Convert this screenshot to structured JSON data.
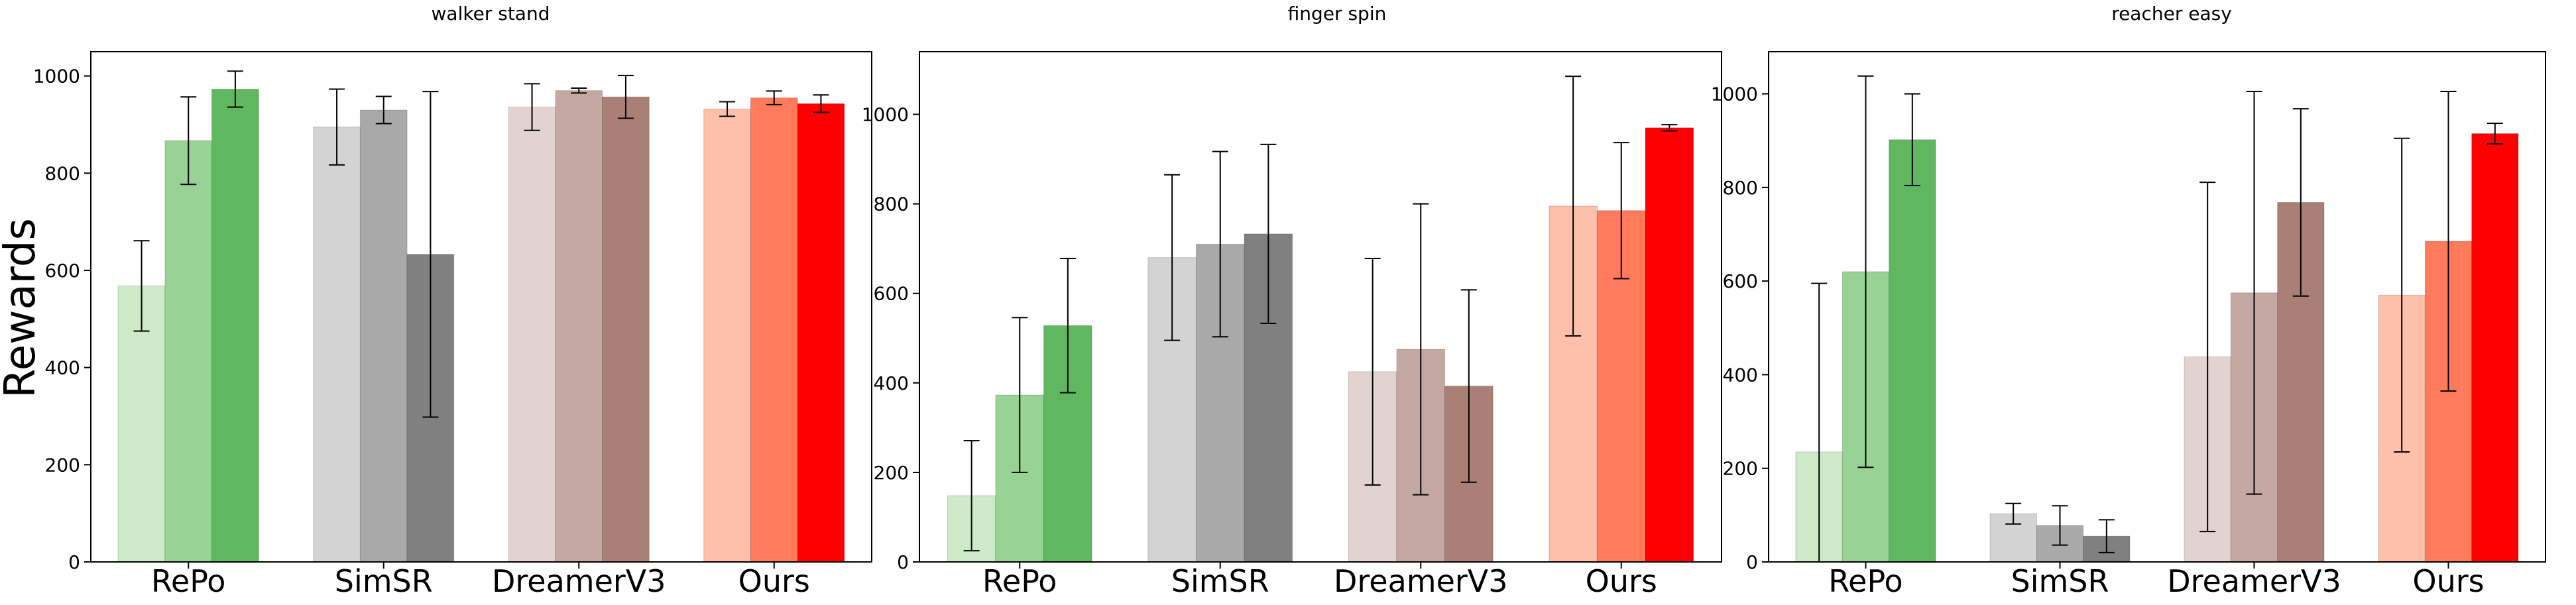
{
  "ylabel": "Rewards",
  "chart_data": [
    {
      "type": "bar",
      "title": "walker stand",
      "categories": [
        "RePo",
        "SimSR",
        "DreamerV3",
        "Ours"
      ],
      "ylim": [
        0,
        1050
      ],
      "yticks": [
        0,
        200,
        400,
        600,
        800,
        1000
      ],
      "groups": [
        {
          "values": [
            568,
            867,
            973
          ],
          "errors": [
            93,
            90,
            37
          ],
          "colors": [
            "#cde9c8",
            "#98d294",
            "#5fb85f"
          ]
        },
        {
          "values": [
            895,
            930,
            633
          ],
          "errors": [
            78,
            28,
            335
          ],
          "colors": [
            "#d3d3d3",
            "#a9a9a9",
            "#808080"
          ]
        },
        {
          "values": [
            936,
            970,
            957
          ],
          "errors": [
            48,
            5,
            44
          ],
          "colors": [
            "#e3d3d0",
            "#c5a8a2",
            "#a97f76"
          ]
        },
        {
          "values": [
            932,
            955,
            943
          ],
          "errors": [
            15,
            14,
            18
          ],
          "colors": [
            "#febfab",
            "#ff7b5c",
            "#ff0000"
          ]
        }
      ]
    },
    {
      "type": "bar",
      "title": "finger spin",
      "categories": [
        "RePo",
        "SimSR",
        "DreamerV3",
        "Ours"
      ],
      "ylim": [
        0,
        1140
      ],
      "yticks": [
        0,
        200,
        400,
        600,
        800,
        1000
      ],
      "groups": [
        {
          "values": [
            148,
            373,
            528
          ],
          "errors": [
            123,
            173,
            150
          ],
          "colors": [
            "#cde9c8",
            "#98d294",
            "#5fb85f"
          ]
        },
        {
          "values": [
            680,
            710,
            733
          ],
          "errors": [
            185,
            207,
            200
          ],
          "colors": [
            "#d3d3d3",
            "#a9a9a9",
            "#808080"
          ]
        },
        {
          "values": [
            425,
            475,
            393
          ],
          "errors": [
            253,
            325,
            215
          ],
          "colors": [
            "#e3d3d0",
            "#c5a8a2",
            "#a97f76"
          ]
        },
        {
          "values": [
            795,
            785,
            970
          ],
          "errors": [
            290,
            152,
            7
          ],
          "colors": [
            "#febfab",
            "#ff7b5c",
            "#ff0000"
          ]
        }
      ]
    },
    {
      "type": "bar",
      "title": "reacher easy",
      "categories": [
        "RePo",
        "SimSR",
        "DreamerV3",
        "Ours"
      ],
      "ylim": [
        0,
        1090
      ],
      "yticks": [
        0,
        200,
        400,
        600,
        800,
        1000
      ],
      "groups": [
        {
          "values": [
            235,
            620,
            902
          ],
          "errors": [
            360,
            418,
            98
          ],
          "colors": [
            "#cde9c8",
            "#98d294",
            "#5fb85f"
          ]
        },
        {
          "values": [
            103,
            78,
            55
          ],
          "errors": [
            22,
            42,
            35
          ],
          "colors": [
            "#d3d3d3",
            "#a9a9a9",
            "#808080"
          ]
        },
        {
          "values": [
            438,
            575,
            768
          ],
          "errors": [
            373,
            430,
            200
          ],
          "colors": [
            "#e3d3d0",
            "#c5a8a2",
            "#a97f76"
          ]
        },
        {
          "values": [
            570,
            685,
            915
          ],
          "errors": [
            335,
            320,
            22
          ],
          "colors": [
            "#febfab",
            "#ff7b5c",
            "#ff0000"
          ]
        }
      ]
    }
  ]
}
